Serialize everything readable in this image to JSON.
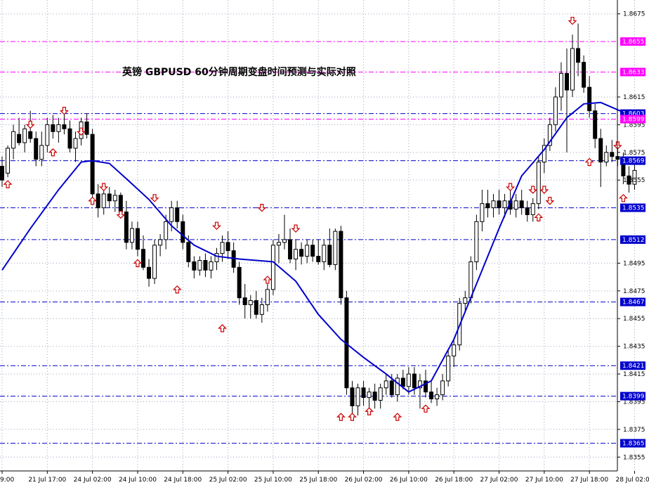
{
  "chart_data": {
    "type": "candlestick",
    "title": "英镑   GBPUSD   60分钟周期变盘时间预测与实际对照",
    "ylim": [
      1.8345,
      1.8685
    ],
    "y_ticks": [
      "1.8675",
      "1.8615",
      "1.8595",
      "1.8575",
      "1.8555",
      "1.8495",
      "1.8475",
      "1.8455",
      "1.8435",
      "1.8415",
      "1.8395",
      "1.8375",
      "1.8355"
    ],
    "x_ticks": [
      {
        "label": "9:00",
        "index": 0
      },
      {
        "label": "21 Jul 17:00",
        "index": 8
      },
      {
        "label": "24 Jul 02:00",
        "index": 16
      },
      {
        "label": "24 Jul 10:00",
        "index": 24
      },
      {
        "label": "24 Jul 18:00",
        "index": 32
      },
      {
        "label": "25 Jul 02:00",
        "index": 40
      },
      {
        "label": "25 Jul 10:00",
        "index": 48
      },
      {
        "label": "25 Jul 18:00",
        "index": 56
      },
      {
        "label": "26 Jul 02:00",
        "index": 64
      },
      {
        "label": "26 Jul 10:00",
        "index": 72
      },
      {
        "label": "26 Jul 18:00",
        "index": 80
      },
      {
        "label": "27 Jul 02:00",
        "index": 88
      },
      {
        "label": "27 Jul 10:00",
        "index": 96
      },
      {
        "label": "27 Jul 18:00",
        "index": 104
      },
      {
        "label": "28 Jul 02:00",
        "index": 112
      }
    ],
    "levels": [
      {
        "value": 1.8655,
        "label": "1.8655",
        "color": "#ff00ff"
      },
      {
        "value": 1.8633,
        "label": "1.8633",
        "color": "#ff00ff"
      },
      {
        "value": 1.8603,
        "label": "1.8603",
        "color": "#0000cc"
      },
      {
        "value": 1.8599,
        "label": "1.8599",
        "color": "#ff00ff"
      },
      {
        "value": 1.8569,
        "label": "1.8569",
        "color": "#0000cc"
      },
      {
        "value": 1.8535,
        "label": "1.8535",
        "color": "#0000cc"
      },
      {
        "value": 1.8512,
        "label": "1.8512",
        "color": "#0000cc"
      },
      {
        "value": 1.8467,
        "label": "1.8467",
        "color": "#0000cc"
      },
      {
        "value": 1.8421,
        "label": "1.8421",
        "color": "#0000cc"
      },
      {
        "value": 1.8399,
        "label": "1.8399",
        "color": "#0000cc"
      },
      {
        "value": 1.8365,
        "label": "1.8365",
        "color": "#0000cc"
      }
    ],
    "moving_average": {
      "color": "#0000cc",
      "points": [
        [
          0,
          1.849
        ],
        [
          5,
          1.852
        ],
        [
          10,
          1.8548
        ],
        [
          14,
          1.8568
        ],
        [
          16,
          1.8569
        ],
        [
          19,
          1.8567
        ],
        [
          22,
          1.8556
        ],
        [
          26,
          1.8541
        ],
        [
          30,
          1.8522
        ],
        [
          34,
          1.8508
        ],
        [
          38,
          1.85
        ],
        [
          42,
          1.8498
        ],
        [
          48,
          1.8496
        ],
        [
          52,
          1.8482
        ],
        [
          56,
          1.8458
        ],
        [
          60,
          1.844
        ],
        [
          64,
          1.8427
        ],
        [
          68,
          1.8415
        ],
        [
          72,
          1.8402
        ],
        [
          76,
          1.841
        ],
        [
          80,
          1.844
        ],
        [
          84,
          1.848
        ],
        [
          88,
          1.852
        ],
        [
          92,
          1.8558
        ],
        [
          96,
          1.8577
        ],
        [
          100,
          1.86
        ],
        [
          103,
          1.861
        ],
        [
          106,
          1.8611
        ],
        [
          110,
          1.8604
        ],
        [
          113,
          1.8602
        ]
      ]
    },
    "candles": [
      [
        1.8565,
        1.8572,
        1.855,
        1.8555
      ],
      [
        1.856,
        1.858,
        1.8557,
        1.8578
      ],
      [
        1.8578,
        1.8595,
        1.857,
        1.859
      ],
      [
        1.8588,
        1.86,
        1.858,
        1.8582
      ],
      [
        1.8582,
        1.8595,
        1.8575,
        1.8592
      ],
      [
        1.859,
        1.8605,
        1.8582,
        1.8585
      ],
      [
        1.8585,
        1.859,
        1.8565,
        1.857
      ],
      [
        1.857,
        1.859,
        1.8565,
        1.858
      ],
      [
        1.858,
        1.86,
        1.8575,
        1.8595
      ],
      [
        1.8595,
        1.8602,
        1.8585,
        1.859
      ],
      [
        1.859,
        1.86,
        1.8582,
        1.8595
      ],
      [
        1.8595,
        1.8603,
        1.8588,
        1.8592
      ],
      [
        1.8592,
        1.8598,
        1.8575,
        1.8578
      ],
      [
        1.8578,
        1.859,
        1.8568,
        1.8585
      ],
      [
        1.8585,
        1.86,
        1.858,
        1.8597
      ],
      [
        1.8597,
        1.8603,
        1.8585,
        1.8588
      ],
      [
        1.8588,
        1.8592,
        1.854,
        1.8545
      ],
      [
        1.8545,
        1.8552,
        1.8528,
        1.8535
      ],
      [
        1.8535,
        1.8548,
        1.853,
        1.8545
      ],
      [
        1.8545,
        1.855,
        1.8535,
        1.854
      ],
      [
        1.854,
        1.8548,
        1.8532,
        1.8544
      ],
      [
        1.8544,
        1.8546,
        1.8528,
        1.8532
      ],
      [
        1.8532,
        1.854,
        1.8505,
        1.851
      ],
      [
        1.851,
        1.8525,
        1.8505,
        1.852
      ],
      [
        1.852,
        1.8525,
        1.85,
        1.8505
      ],
      [
        1.8505,
        1.8515,
        1.849,
        1.8492
      ],
      [
        1.8492,
        1.8498,
        1.8478,
        1.8484
      ],
      [
        1.8484,
        1.8512,
        1.848,
        1.8508
      ],
      [
        1.8508,
        1.8516,
        1.85,
        1.8512
      ],
      [
        1.8512,
        1.853,
        1.8505,
        1.8525
      ],
      [
        1.8525,
        1.854,
        1.8518,
        1.8535
      ],
      [
        1.8535,
        1.854,
        1.852,
        1.8525
      ],
      [
        1.8525,
        1.853,
        1.8505,
        1.851
      ],
      [
        1.851,
        1.8515,
        1.8492,
        1.8496
      ],
      [
        1.8496,
        1.85,
        1.8484,
        1.849
      ],
      [
        1.849,
        1.85,
        1.8486,
        1.8497
      ],
      [
        1.8497,
        1.8502,
        1.8485,
        1.849
      ],
      [
        1.849,
        1.85,
        1.8484,
        1.8496
      ],
      [
        1.8496,
        1.8506,
        1.849,
        1.8502
      ],
      [
        1.8502,
        1.8515,
        1.8496,
        1.851
      ],
      [
        1.851,
        1.8518,
        1.8498,
        1.8504
      ],
      [
        1.8504,
        1.851,
        1.8488,
        1.8492
      ],
      [
        1.8492,
        1.8496,
        1.8465,
        1.847
      ],
      [
        1.847,
        1.848,
        1.8455,
        1.8465
      ],
      [
        1.8465,
        1.8472,
        1.8455,
        1.8468
      ],
      [
        1.8468,
        1.8475,
        1.8455,
        1.8458
      ],
      [
        1.8458,
        1.847,
        1.8452,
        1.8465
      ],
      [
        1.8465,
        1.848,
        1.846,
        1.8476
      ],
      [
        1.8476,
        1.8512,
        1.8472,
        1.8508
      ],
      [
        1.8508,
        1.8516,
        1.8495,
        1.851
      ],
      [
        1.851,
        1.853,
        1.8505,
        1.8512
      ],
      [
        1.8512,
        1.852,
        1.8495,
        1.8498
      ],
      [
        1.8498,
        1.8512,
        1.849,
        1.8505
      ],
      [
        1.8505,
        1.851,
        1.8494,
        1.85
      ],
      [
        1.85,
        1.8512,
        1.8495,
        1.8508
      ],
      [
        1.8508,
        1.8512,
        1.8496,
        1.85
      ],
      [
        1.85,
        1.8512,
        1.8494,
        1.8496
      ],
      [
        1.8496,
        1.8512,
        1.849,
        1.8508
      ],
      [
        1.8508,
        1.852,
        1.8492,
        1.8494
      ],
      [
        1.8494,
        1.852,
        1.849,
        1.8518
      ],
      [
        1.8518,
        1.8522,
        1.8465,
        1.847
      ],
      [
        1.847,
        1.8475,
        1.84,
        1.8405
      ],
      [
        1.8405,
        1.841,
        1.8385,
        1.8392
      ],
      [
        1.8392,
        1.8408,
        1.8385,
        1.8405
      ],
      [
        1.8405,
        1.841,
        1.8392,
        1.8398
      ],
      [
        1.8398,
        1.8405,
        1.8388,
        1.8402
      ],
      [
        1.8402,
        1.8408,
        1.839,
        1.8396
      ],
      [
        1.8396,
        1.8408,
        1.839,
        1.8405
      ],
      [
        1.8405,
        1.8415,
        1.84,
        1.841
      ],
      [
        1.841,
        1.8415,
        1.8398,
        1.84
      ],
      [
        1.84,
        1.8415,
        1.8395,
        1.8412
      ],
      [
        1.8412,
        1.8418,
        1.8404,
        1.8406
      ],
      [
        1.8406,
        1.842,
        1.84,
        1.8415
      ],
      [
        1.8415,
        1.842,
        1.84,
        1.8405
      ],
      [
        1.8405,
        1.8415,
        1.839,
        1.841
      ],
      [
        1.841,
        1.8418,
        1.8398,
        1.8402
      ],
      [
        1.8402,
        1.841,
        1.8394,
        1.8397
      ],
      [
        1.8397,
        1.8405,
        1.8392,
        1.84
      ],
      [
        1.84,
        1.8415,
        1.8396,
        1.841
      ],
      [
        1.841,
        1.8432,
        1.8406,
        1.8428
      ],
      [
        1.8428,
        1.844,
        1.842,
        1.8436
      ],
      [
        1.8436,
        1.847,
        1.8432,
        1.8466
      ],
      [
        1.8466,
        1.8475,
        1.846,
        1.847
      ],
      [
        1.847,
        1.85,
        1.8466,
        1.8496
      ],
      [
        1.8496,
        1.853,
        1.849,
        1.8525
      ],
      [
        1.8525,
        1.8548,
        1.8518,
        1.8538
      ],
      [
        1.8538,
        1.8548,
        1.8528,
        1.8535
      ],
      [
        1.8535,
        1.8545,
        1.8528,
        1.854
      ],
      [
        1.854,
        1.8548,
        1.853,
        1.8535
      ],
      [
        1.8535,
        1.8545,
        1.8528,
        1.854
      ],
      [
        1.854,
        1.8548,
        1.853,
        1.8534
      ],
      [
        1.8534,
        1.8545,
        1.8528,
        1.854
      ],
      [
        1.854,
        1.8548,
        1.853,
        1.8535
      ],
      [
        1.8535,
        1.854,
        1.8525,
        1.853
      ],
      [
        1.853,
        1.8542,
        1.8525,
        1.8538
      ],
      [
        1.8538,
        1.8572,
        1.8534,
        1.8568
      ],
      [
        1.8568,
        1.8585,
        1.856,
        1.858
      ],
      [
        1.858,
        1.86,
        1.8576,
        1.8595
      ],
      [
        1.8595,
        1.8622,
        1.859,
        1.8615
      ],
      [
        1.8615,
        1.864,
        1.8605,
        1.8632
      ],
      [
        1.8632,
        1.865,
        1.8575,
        1.862
      ],
      [
        1.862,
        1.866,
        1.8615,
        1.865
      ],
      [
        1.865,
        1.8668,
        1.863,
        1.864
      ],
      [
        1.864,
        1.8645,
        1.8618,
        1.8622
      ],
      [
        1.8622,
        1.863,
        1.86,
        1.8605
      ],
      [
        1.8605,
        1.861,
        1.8578,
        1.8585
      ],
      [
        1.8585,
        1.8592,
        1.855,
        1.8568
      ],
      [
        1.8568,
        1.858,
        1.8565,
        1.8575
      ],
      [
        1.8575,
        1.8584,
        1.8568,
        1.8572
      ],
      [
        1.8572,
        1.858,
        1.8565,
        1.857
      ],
      [
        1.857,
        1.8575,
        1.8552,
        1.8558
      ],
      [
        1.8558,
        1.8565,
        1.8546,
        1.8552
      ],
      [
        1.8552,
        1.8568,
        1.8548,
        1.8562
      ]
    ],
    "markers_down": [
      [
        5,
        1.8595
      ],
      [
        11,
        1.8605
      ],
      [
        14,
        1.859
      ],
      [
        18,
        1.855
      ],
      [
        21,
        1.853
      ],
      [
        27,
        1.8542
      ],
      [
        38,
        1.8522
      ],
      [
        46,
        1.8535
      ],
      [
        52,
        1.852
      ],
      [
        90,
        1.855
      ],
      [
        94,
        1.8548
      ],
      [
        96,
        1.8548
      ],
      [
        97,
        1.854
      ],
      [
        101,
        1.867
      ],
      [
        109,
        1.858
      ]
    ],
    "markers_up": [
      [
        1,
        1.8552
      ],
      [
        9,
        1.8575
      ],
      [
        16,
        1.854
      ],
      [
        24,
        1.8495
      ],
      [
        31,
        1.8476
      ],
      [
        39,
        1.8448
      ],
      [
        47,
        1.8483
      ],
      [
        60,
        1.8384
      ],
      [
        62,
        1.8384
      ],
      [
        65,
        1.8388
      ],
      [
        70,
        1.8384
      ],
      [
        75,
        1.839
      ],
      [
        95,
        1.8528
      ],
      [
        104,
        1.8568
      ],
      [
        110,
        1.8542
      ]
    ]
  }
}
